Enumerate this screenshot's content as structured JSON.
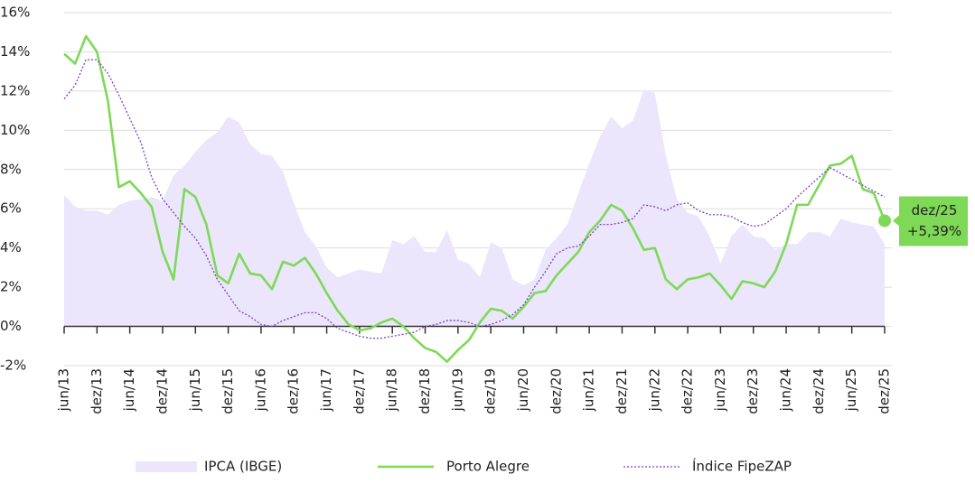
{
  "chart_data": {
    "type": "line",
    "categories": [
      "jun/13",
      null,
      null,
      "dez/13",
      null,
      null,
      "jun/14",
      null,
      null,
      "dez/14",
      null,
      null,
      "jun/15",
      null,
      null,
      "dez/15",
      null,
      null,
      "jun/16",
      null,
      null,
      "dez/16",
      null,
      null,
      "jun/17",
      null,
      null,
      "dez/17",
      null,
      null,
      "jun/18",
      null,
      null,
      "dez/18",
      null,
      null,
      "jun/19",
      null,
      null,
      "dez/19",
      null,
      null,
      "jun/20",
      null,
      null,
      "dez/20",
      null,
      null,
      "jun/21",
      null,
      null,
      "dez/21",
      null,
      null,
      "jun/22",
      null,
      null,
      "dez/22",
      null,
      null,
      "jun/23",
      null,
      null,
      "dez/23",
      null,
      null,
      "jun/24",
      null,
      null,
      "dez/24",
      null,
      null,
      "jun/25",
      null,
      null,
      "dez/25"
    ],
    "series": [
      {
        "name": "IPCA (IBGE)",
        "type": "area",
        "color": "#ebe6fb",
        "values": [
          6.7,
          6.1,
          5.9,
          5.9,
          5.7,
          6.2,
          6.4,
          6.5,
          6.6,
          6.4,
          7.7,
          8.2,
          8.9,
          9.5,
          9.9,
          10.7,
          10.4,
          9.3,
          8.8,
          8.7,
          7.9,
          6.3,
          4.8,
          4.1,
          3.0,
          2.5,
          2.7,
          2.9,
          2.8,
          2.7,
          4.4,
          4.2,
          4.6,
          3.8,
          3.8,
          4.9,
          3.4,
          3.2,
          2.5,
          4.3,
          4.0,
          2.4,
          2.1,
          2.4,
          3.9,
          4.5,
          5.2,
          6.8,
          8.3,
          9.7,
          10.7,
          10.1,
          10.5,
          12.1,
          11.9,
          8.7,
          6.5,
          5.8,
          5.6,
          4.6,
          3.2,
          4.6,
          5.2,
          4.6,
          4.5,
          3.9,
          4.2,
          4.2,
          4.8,
          4.8,
          4.6,
          5.5,
          5.3,
          5.2,
          5.1,
          4.2
        ]
      },
      {
        "name": "Porto Alegre",
        "type": "line",
        "color": "#7ed957",
        "values": [
          13.9,
          13.4,
          14.8,
          14.0,
          11.5,
          7.1,
          7.4,
          6.8,
          6.1,
          3.8,
          2.4,
          7.0,
          6.6,
          5.2,
          2.6,
          2.2,
          3.7,
          2.7,
          2.6,
          1.9,
          3.3,
          3.1,
          3.5,
          2.7,
          1.7,
          0.8,
          0.1,
          -0.2,
          -0.1,
          0.2,
          0.4,
          0.0,
          -0.6,
          -1.1,
          -1.3,
          -1.8,
          -1.2,
          -0.7,
          0.2,
          0.9,
          0.8,
          0.4,
          1.0,
          1.7,
          1.8,
          2.6,
          3.2,
          3.8,
          4.8,
          5.4,
          6.2,
          5.9,
          5.0,
          3.9,
          4.0,
          2.4,
          1.9,
          2.4,
          2.5,
          2.7,
          2.1,
          1.4,
          2.3,
          2.2,
          2.0,
          2.8,
          4.2,
          6.2,
          6.2,
          7.2,
          8.2,
          8.3,
          8.7,
          7.0,
          6.8,
          5.39
        ]
      },
      {
        "name": "Índice FipeZAP",
        "type": "line",
        "line_style": "dotted",
        "color": "#7b3fc4",
        "values": [
          11.6,
          12.3,
          13.6,
          13.6,
          12.9,
          11.8,
          10.6,
          9.4,
          7.6,
          6.5,
          5.8,
          5.1,
          4.5,
          3.6,
          2.4,
          1.6,
          0.8,
          0.5,
          0.1,
          0.0,
          0.3,
          0.5,
          0.7,
          0.7,
          0.4,
          -0.1,
          -0.3,
          -0.5,
          -0.6,
          -0.6,
          -0.5,
          -0.4,
          -0.3,
          0.0,
          0.1,
          0.3,
          0.3,
          0.2,
          0.0,
          0.1,
          0.3,
          0.6,
          1.1,
          2.0,
          2.8,
          3.7,
          4.0,
          4.1,
          4.6,
          5.2,
          5.2,
          5.3,
          5.5,
          6.2,
          6.1,
          5.9,
          6.2,
          6.3,
          5.9,
          5.7,
          5.7,
          5.6,
          5.3,
          5.1,
          5.2,
          5.6,
          6.0,
          6.6,
          7.1,
          7.6,
          8.1,
          7.8,
          7.5,
          7.2,
          6.9,
          6.6
        ]
      }
    ],
    "ylim": [
      -2,
      16
    ],
    "yticks": [
      {
        "value": -2,
        "label": "-2%"
      },
      {
        "value": 0,
        "label": "0%"
      },
      {
        "value": 2,
        "label": "2%"
      },
      {
        "value": 4,
        "label": "4%"
      },
      {
        "value": 6,
        "label": "6%"
      },
      {
        "value": 8,
        "label": "8%"
      },
      {
        "value": 10,
        "label": "10%"
      },
      {
        "value": 12,
        "label": "12%"
      },
      {
        "value": 14,
        "label": "14%"
      },
      {
        "value": 16,
        "label": "16%"
      }
    ],
    "grid": true,
    "legend": "bottom",
    "annotation": {
      "label": "dez/25",
      "value_label": "+5,39%",
      "color": "#7ed957"
    }
  }
}
